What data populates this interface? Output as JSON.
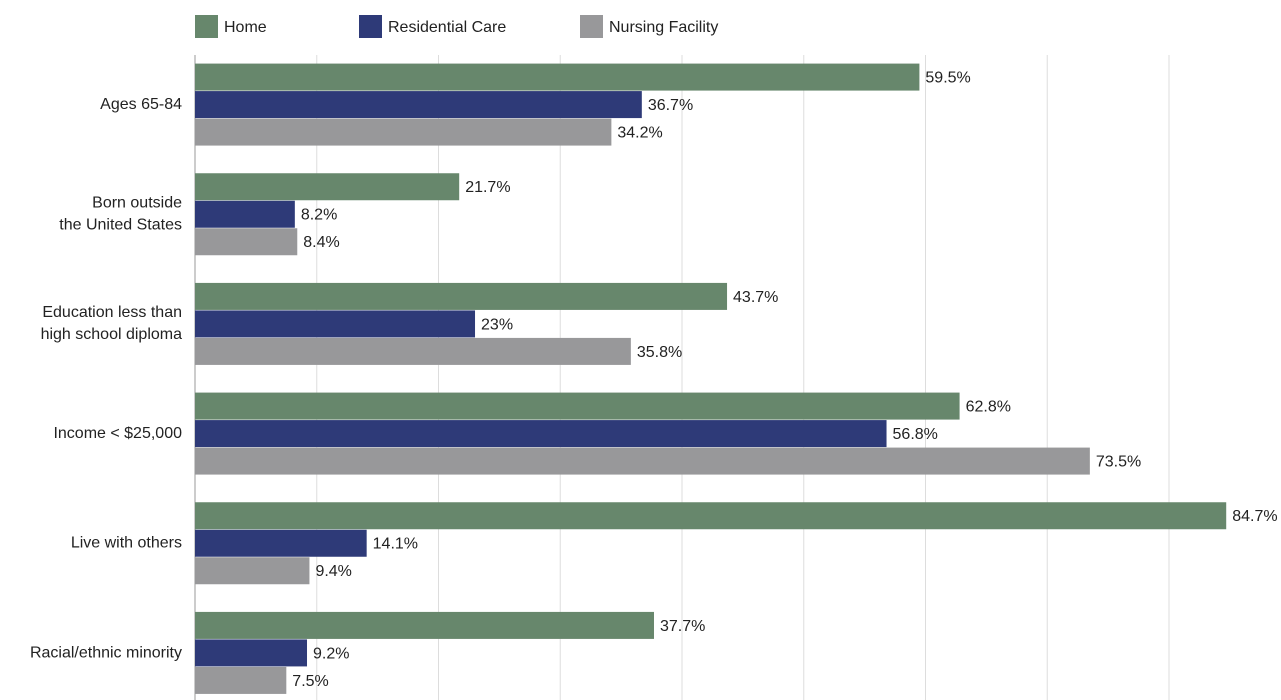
{
  "chart_data": {
    "type": "hbar",
    "categories": [
      "Ages 65-84",
      "Born outside\nthe United States",
      "Education less than\nhigh school diploma",
      "Income < $25,000",
      "Live with others",
      "Racial/ethnic minority"
    ],
    "series": [
      {
        "name": "Home",
        "color": "#67876c",
        "values": [
          59.5,
          21.7,
          43.7,
          62.8,
          84.7,
          37.7
        ],
        "value_labels": [
          "59.5%",
          "21.7%",
          "43.7%",
          "62.8%",
          "84.7%",
          "37.7%"
        ]
      },
      {
        "name": "Residential Care",
        "color": "#2e3a78",
        "values": [
          36.7,
          8.2,
          23,
          56.8,
          14.1,
          9.2
        ],
        "value_labels": [
          "36.7%",
          "8.2%",
          "23%",
          "56.8%",
          "14.1%",
          "9.2%"
        ]
      },
      {
        "name": "Nursing Facility",
        "color": "#98989a",
        "values": [
          34.2,
          8.4,
          35.8,
          73.5,
          9.4,
          7.5
        ],
        "value_labels": [
          "34.2%",
          "8.4%",
          "35.8%",
          "73.5%",
          "9.4%",
          "7.5%"
        ]
      }
    ],
    "xlim": [
      0,
      89.2
    ],
    "xticks": [
      0,
      10,
      20,
      30,
      40,
      50,
      60,
      70,
      80
    ],
    "grid": true,
    "legend": "top"
  }
}
